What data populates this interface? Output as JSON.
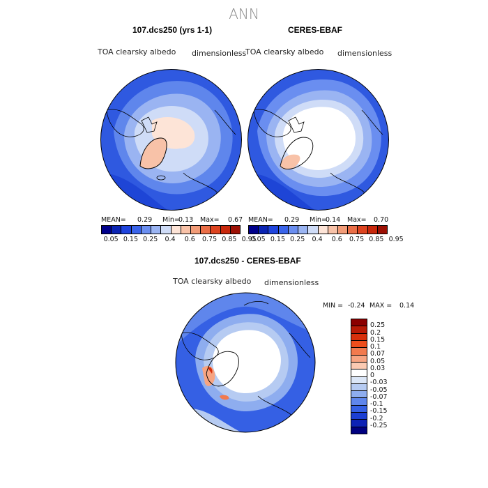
{
  "figure": {
    "title": "ANN"
  },
  "panels": [
    {
      "title": "107.dcs250 (yrs 1-1)",
      "variable": "TOA clearsky albedo",
      "units": "dimensionless",
      "stats": {
        "mean_label": "MEAN=",
        "mean": "0.29",
        "min_label": "Min=",
        "min": "0.13",
        "max_label": "Max=",
        "max": "0.67"
      }
    },
    {
      "title": "CERES-EBAF",
      "variable": "TOA clearsky albedo",
      "units": "dimensionless",
      "stats": {
        "mean_label": "MEAN=",
        "mean": "0.29",
        "min_label": "Min=",
        "min": "0.14",
        "max_label": "Max=",
        "max": "0.70"
      }
    }
  ],
  "diff_panel": {
    "title": "107.dcs250 - CERES-EBAF",
    "variable": "TOA clearsky albedo",
    "units": "dimensionless",
    "min_label": "MIN =",
    "min": "-0.24",
    "max_label": "MAX =",
    "max": "0.14"
  },
  "colorbar_top": {
    "labels": [
      "0.05",
      "0.15",
      "0.25",
      "0.4",
      "0.6",
      "0.75",
      "0.85",
      "0.95"
    ],
    "colors": [
      "#00008b",
      "#0b24b3",
      "#1f44dd",
      "#3a64ea",
      "#6a8ef0",
      "#9ab4f2",
      "#cfdcf7",
      "#fde4d7",
      "#f8c2a8",
      "#f29c78",
      "#ea6e47",
      "#dd4420",
      "#c8280c",
      "#9c1004"
    ]
  },
  "colorbar_diff": {
    "labels": [
      "0.25",
      "0.2",
      "0.15",
      "0.1",
      "0.07",
      "0.05",
      "0.03",
      "0",
      "-0.03",
      "-0.05",
      "-0.07",
      "-0.1",
      "-0.15",
      "-0.2",
      "-0.25"
    ],
    "colors": [
      "#8b0000",
      "#b81a06",
      "#d8300c",
      "#ee4e1c",
      "#f27a4e",
      "#f7a482",
      "#fbcab2",
      "#ffffff",
      "#dbe6f7",
      "#b6cbf2",
      "#8eadef",
      "#5f86ec",
      "#3560e4",
      "#1c3fd3",
      "#0d22b5",
      "#000080"
    ]
  }
}
